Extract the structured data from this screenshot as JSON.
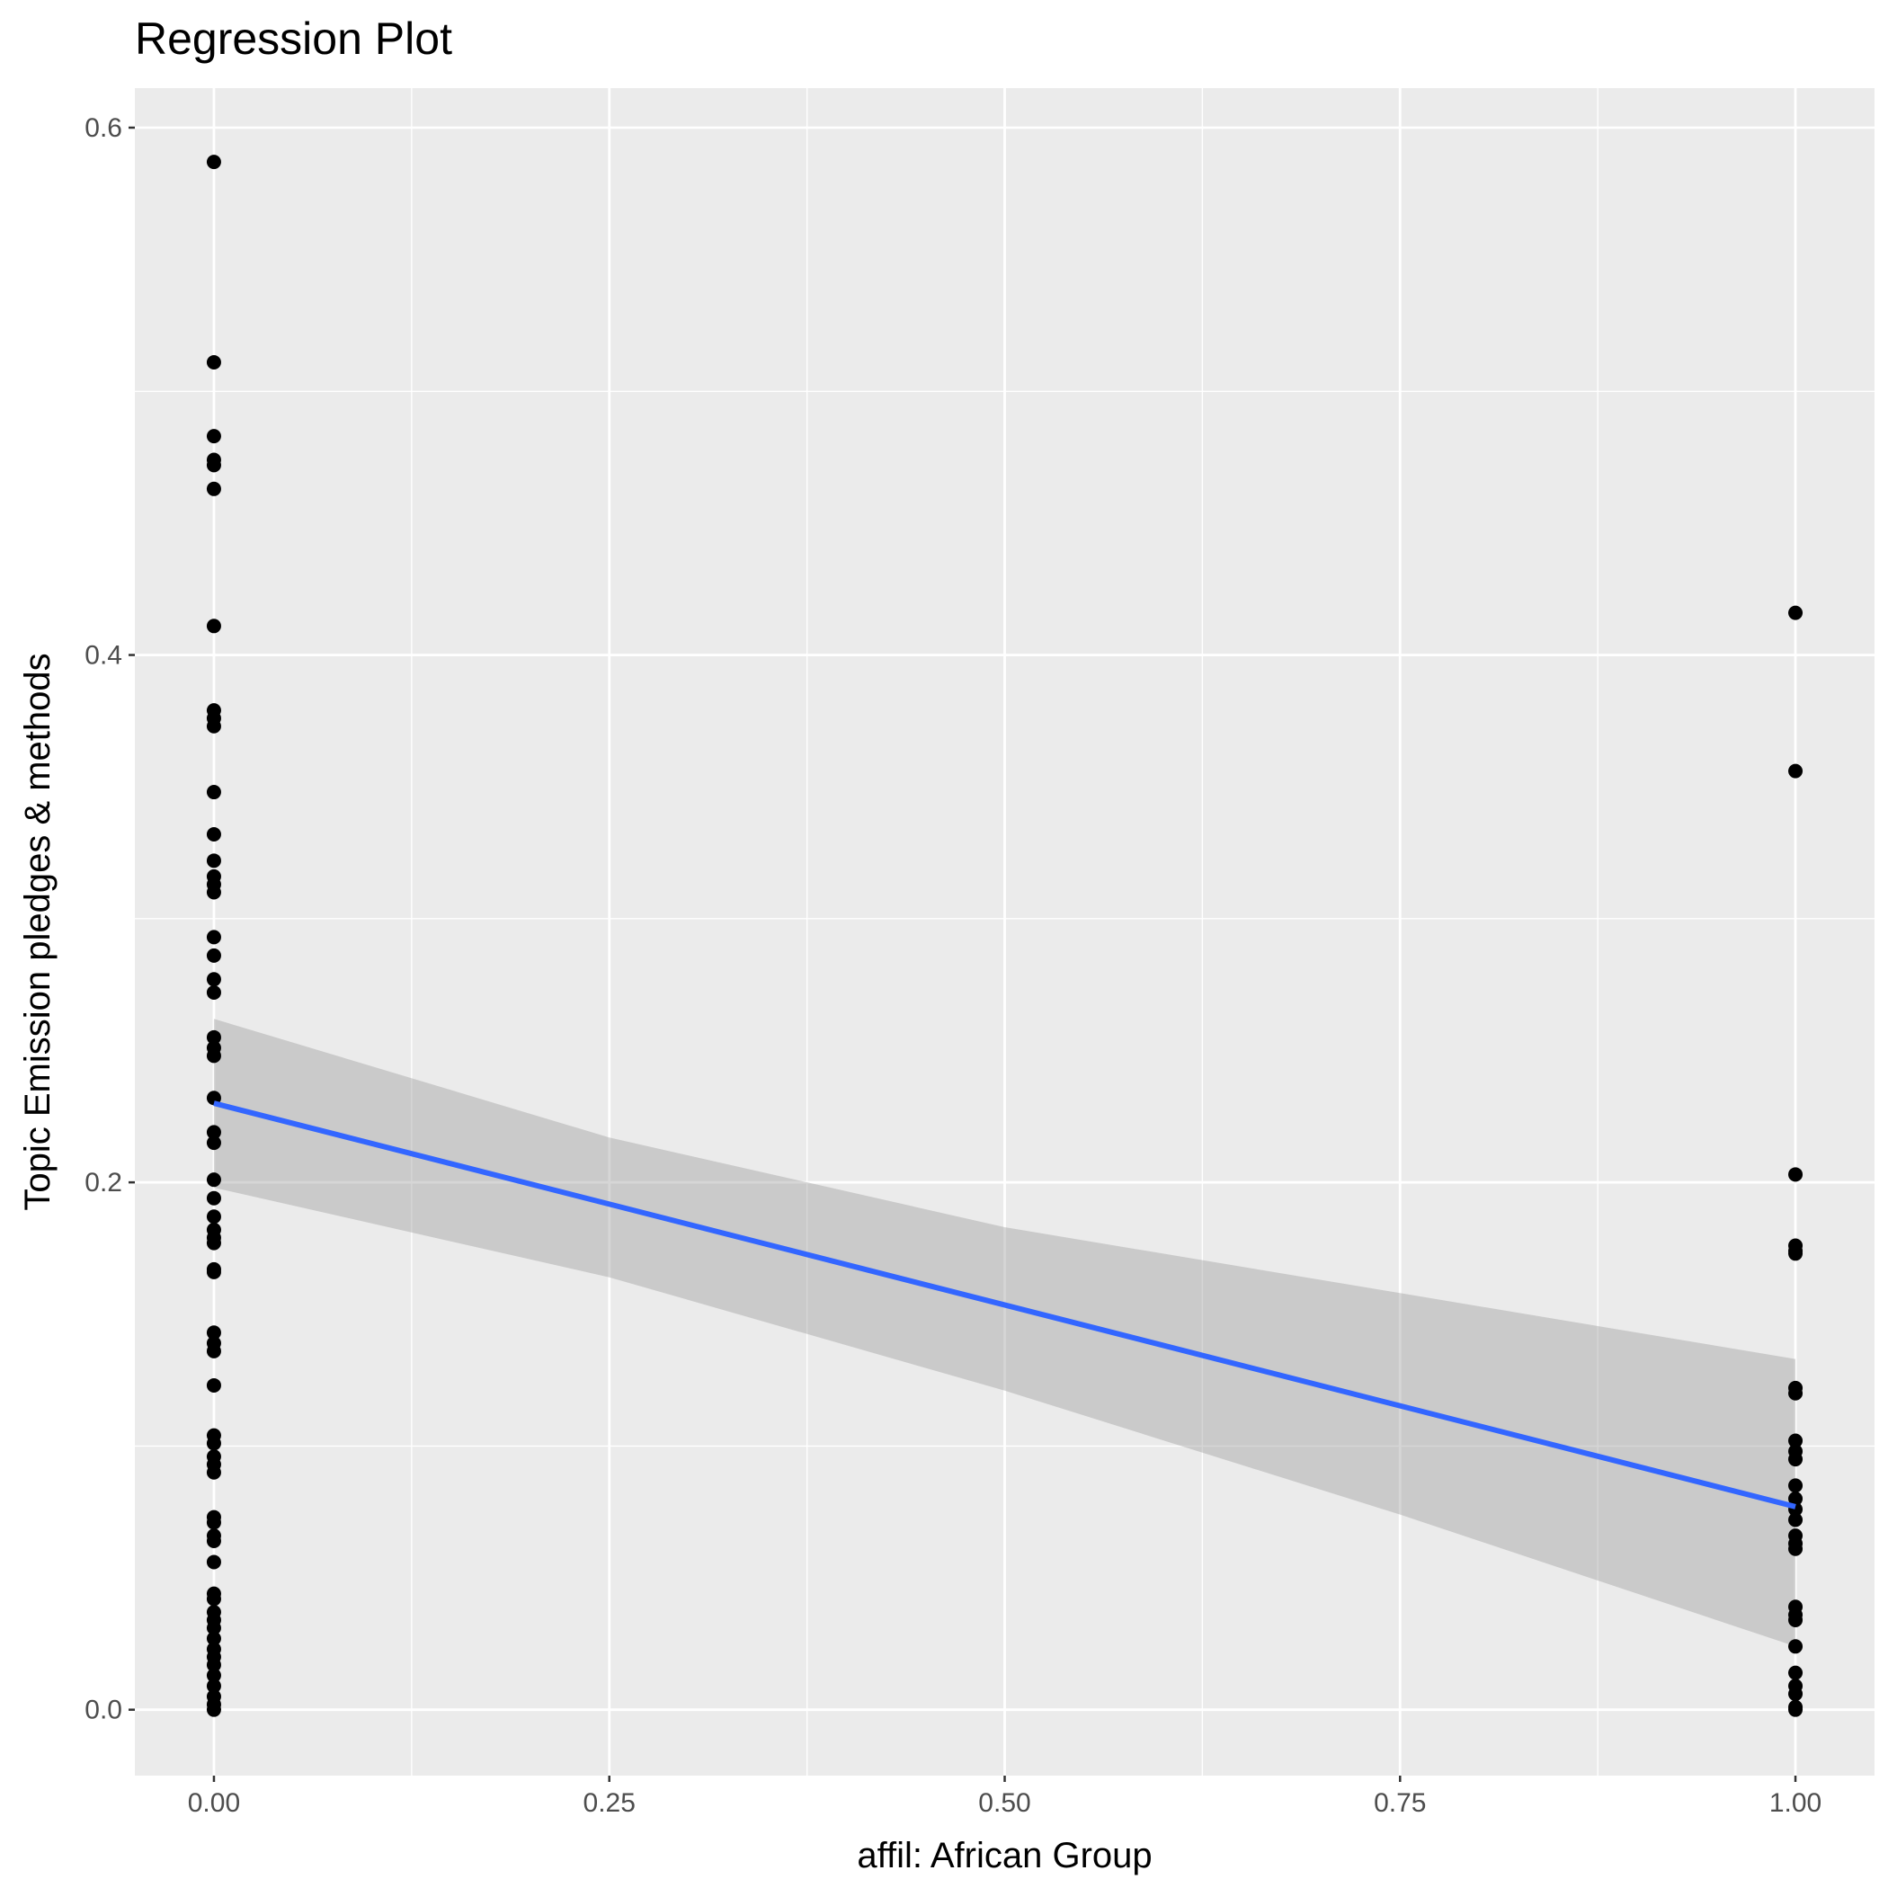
{
  "chart_data": {
    "type": "scatter",
    "title": "Regression Plot",
    "xlabel": "affil: African Group",
    "ylabel": "Topic Emission pledges & methods",
    "xlim": [
      -0.05,
      1.05
    ],
    "ylim": [
      -0.025,
      0.615
    ],
    "x_ticks": [
      {
        "value": 0.0,
        "label": "0.00"
      },
      {
        "value": 0.25,
        "label": "0.25"
      },
      {
        "value": 0.5,
        "label": "0.50"
      },
      {
        "value": 0.75,
        "label": "0.75"
      },
      {
        "value": 1.0,
        "label": "1.00"
      }
    ],
    "y_ticks": [
      {
        "value": 0.0,
        "label": "0.0"
      },
      {
        "value": 0.2,
        "label": "0.2"
      },
      {
        "value": 0.4,
        "label": "0.4"
      },
      {
        "value": 0.6,
        "label": "0.6"
      }
    ],
    "grid": true,
    "background": "#ebebeb",
    "point_color": "#000000",
    "line_color": "#3366ff",
    "band_color": "#999999",
    "points": [
      {
        "x": 0,
        "y": 0.587
      },
      {
        "x": 0,
        "y": 0.511
      },
      {
        "x": 0,
        "y": 0.483
      },
      {
        "x": 0,
        "y": 0.474
      },
      {
        "x": 0,
        "y": 0.472
      },
      {
        "x": 0,
        "y": 0.463
      },
      {
        "x": 0,
        "y": 0.411
      },
      {
        "x": 0,
        "y": 0.379
      },
      {
        "x": 0,
        "y": 0.376
      },
      {
        "x": 0,
        "y": 0.373
      },
      {
        "x": 0,
        "y": 0.348
      },
      {
        "x": 0,
        "y": 0.332
      },
      {
        "x": 0,
        "y": 0.322
      },
      {
        "x": 0,
        "y": 0.316
      },
      {
        "x": 0,
        "y": 0.313
      },
      {
        "x": 0,
        "y": 0.31
      },
      {
        "x": 0,
        "y": 0.293
      },
      {
        "x": 0,
        "y": 0.286
      },
      {
        "x": 0,
        "y": 0.277
      },
      {
        "x": 0,
        "y": 0.272
      },
      {
        "x": 0,
        "y": 0.255
      },
      {
        "x": 0,
        "y": 0.251
      },
      {
        "x": 0,
        "y": 0.248
      },
      {
        "x": 0,
        "y": 0.232
      },
      {
        "x": 0,
        "y": 0.219
      },
      {
        "x": 0,
        "y": 0.215
      },
      {
        "x": 0,
        "y": 0.201
      },
      {
        "x": 0,
        "y": 0.194
      },
      {
        "x": 0,
        "y": 0.187
      },
      {
        "x": 0,
        "y": 0.182
      },
      {
        "x": 0,
        "y": 0.179
      },
      {
        "x": 0,
        "y": 0.177
      },
      {
        "x": 0,
        "y": 0.167
      },
      {
        "x": 0,
        "y": 0.166
      },
      {
        "x": 0,
        "y": 0.143
      },
      {
        "x": 0,
        "y": 0.139
      },
      {
        "x": 0,
        "y": 0.136
      },
      {
        "x": 0,
        "y": 0.123
      },
      {
        "x": 0,
        "y": 0.104
      },
      {
        "x": 0,
        "y": 0.101
      },
      {
        "x": 0,
        "y": 0.096
      },
      {
        "x": 0,
        "y": 0.093
      },
      {
        "x": 0,
        "y": 0.09
      },
      {
        "x": 0,
        "y": 0.073
      },
      {
        "x": 0,
        "y": 0.071
      },
      {
        "x": 0,
        "y": 0.066
      },
      {
        "x": 0,
        "y": 0.064
      },
      {
        "x": 0,
        "y": 0.056
      },
      {
        "x": 0,
        "y": 0.044
      },
      {
        "x": 0,
        "y": 0.042
      },
      {
        "x": 0,
        "y": 0.037
      },
      {
        "x": 0,
        "y": 0.034
      },
      {
        "x": 0,
        "y": 0.031
      },
      {
        "x": 0,
        "y": 0.027
      },
      {
        "x": 0,
        "y": 0.023
      },
      {
        "x": 0,
        "y": 0.02
      },
      {
        "x": 0,
        "y": 0.017
      },
      {
        "x": 0,
        "y": 0.013
      },
      {
        "x": 0,
        "y": 0.009
      },
      {
        "x": 0,
        "y": 0.005
      },
      {
        "x": 0,
        "y": 0.002
      },
      {
        "x": 0,
        "y": 0.0
      },
      {
        "x": 1,
        "y": 0.416
      },
      {
        "x": 1,
        "y": 0.356
      },
      {
        "x": 1,
        "y": 0.203
      },
      {
        "x": 1,
        "y": 0.176
      },
      {
        "x": 1,
        "y": 0.174
      },
      {
        "x": 1,
        "y": 0.173
      },
      {
        "x": 1,
        "y": 0.122
      },
      {
        "x": 1,
        "y": 0.12
      },
      {
        "x": 1,
        "y": 0.102
      },
      {
        "x": 1,
        "y": 0.098
      },
      {
        "x": 1,
        "y": 0.095
      },
      {
        "x": 1,
        "y": 0.085
      },
      {
        "x": 1,
        "y": 0.08
      },
      {
        "x": 1,
        "y": 0.076
      },
      {
        "x": 1,
        "y": 0.072
      },
      {
        "x": 1,
        "y": 0.066
      },
      {
        "x": 1,
        "y": 0.063
      },
      {
        "x": 1,
        "y": 0.061
      },
      {
        "x": 1,
        "y": 0.039
      },
      {
        "x": 1,
        "y": 0.036
      },
      {
        "x": 1,
        "y": 0.034
      },
      {
        "x": 1,
        "y": 0.024
      },
      {
        "x": 1,
        "y": 0.014
      },
      {
        "x": 1,
        "y": 0.009
      },
      {
        "x": 1,
        "y": 0.006
      },
      {
        "x": 1,
        "y": 0.001
      },
      {
        "x": 1,
        "y": 0.0
      }
    ],
    "regression_line": {
      "x": [
        0,
        1
      ],
      "y": [
        0.23,
        0.077
      ]
    },
    "confidence_band": {
      "x": [
        0.0,
        0.25,
        0.5,
        0.75,
        1.0
      ],
      "upper": [
        0.262,
        0.217,
        0.183,
        0.158,
        0.133
      ],
      "lower": [
        0.198,
        0.164,
        0.121,
        0.074,
        0.024
      ]
    }
  }
}
